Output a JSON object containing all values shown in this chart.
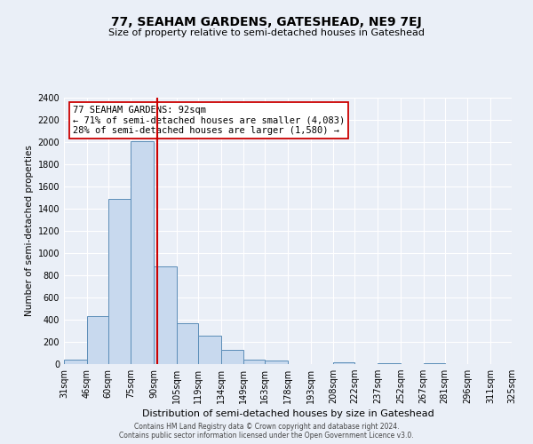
{
  "title": "77, SEAHAM GARDENS, GATESHEAD, NE9 7EJ",
  "subtitle": "Size of property relative to semi-detached houses in Gateshead",
  "xlabel": "Distribution of semi-detached houses by size in Gateshead",
  "ylabel": "Number of semi-detached properties",
  "bin_labels": [
    "31sqm",
    "46sqm",
    "60sqm",
    "75sqm",
    "90sqm",
    "105sqm",
    "119sqm",
    "134sqm",
    "149sqm",
    "163sqm",
    "178sqm",
    "193sqm",
    "208sqm",
    "222sqm",
    "237sqm",
    "252sqm",
    "267sqm",
    "281sqm",
    "296sqm",
    "311sqm",
    "325sqm"
  ],
  "bin_edges": [
    31,
    46,
    60,
    75,
    90,
    105,
    119,
    134,
    149,
    163,
    178,
    193,
    208,
    222,
    237,
    252,
    267,
    281,
    296,
    311,
    325
  ],
  "bar_values": [
    40,
    430,
    1490,
    2010,
    880,
    370,
    255,
    130,
    40,
    30,
    0,
    0,
    20,
    0,
    10,
    0,
    10,
    0,
    0,
    0
  ],
  "bar_color": "#c8d9ee",
  "bar_edge_color": "#5b8db8",
  "vline_x": 92,
  "vline_color": "#cc0000",
  "annotation_title": "77 SEAHAM GARDENS: 92sqm",
  "annotation_line1": "← 71% of semi-detached houses are smaller (4,083)",
  "annotation_line2": "28% of semi-detached houses are larger (1,580) →",
  "annotation_box_color": "#ffffff",
  "annotation_box_edge": "#cc0000",
  "ylim": [
    0,
    2400
  ],
  "yticks": [
    0,
    200,
    400,
    600,
    800,
    1000,
    1200,
    1400,
    1600,
    1800,
    2000,
    2200,
    2400
  ],
  "footer1": "Contains HM Land Registry data © Crown copyright and database right 2024.",
  "footer2": "Contains public sector information licensed under the Open Government Licence v3.0.",
  "bg_color": "#eaeff7",
  "plot_bg_color": "#eaeff7",
  "grid_color": "#ffffff",
  "title_fontsize": 10,
  "subtitle_fontsize": 8,
  "ylabel_fontsize": 7.5,
  "xlabel_fontsize": 8,
  "tick_fontsize": 7,
  "annot_fontsize": 7.5,
  "footer_fontsize": 5.5
}
